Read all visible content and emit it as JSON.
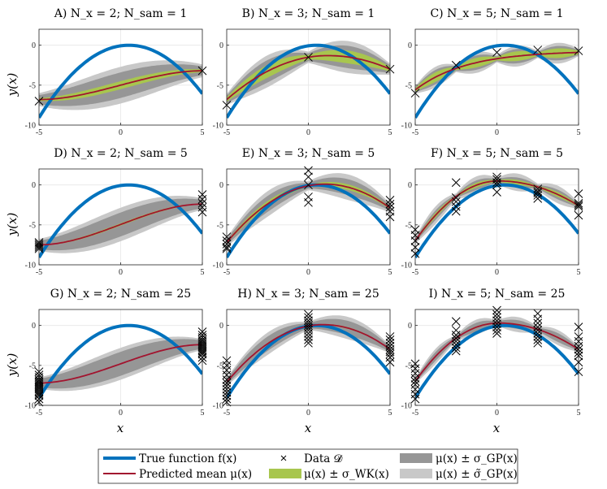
{
  "figure": {
    "ylabel": "y(x)",
    "xlabel": "x"
  },
  "legend": {
    "entries": [
      {
        "key": "true",
        "label": "True function f(x)"
      },
      {
        "key": "data",
        "label": "Data 𝓓"
      },
      {
        "key": "gp",
        "label": "μ(x) ± σ_GP(x)"
      },
      {
        "key": "mean",
        "label": "Predicted mean μ(x)"
      },
      {
        "key": "wk",
        "label": "μ(x) ± σ_WK(x)"
      },
      {
        "key": "gpt",
        "label": "μ(x) ± σ̃_GP(x)"
      }
    ]
  },
  "colors": {
    "true_function": "#0072BD",
    "predicted_mean": "#A2142F",
    "band_wk": "#A8C64E",
    "band_gp": "#969696",
    "band_gp_tilde": "#C8C8C8",
    "data_marker": "#000000"
  },
  "chart_data": [
    {
      "id": "A",
      "title": "A) N_x = 2; N_sam = 1",
      "type": "line",
      "x_range": [
        -5,
        5
      ],
      "ylim": [
        -10,
        2
      ],
      "xticks": [
        -5,
        0,
        5
      ],
      "yticks": [
        0,
        -5,
        -10
      ],
      "data_x": [
        -5,
        5
      ],
      "data_y": [
        [
          -7
        ],
        [
          -3.2
        ]
      ],
      "mean_mode": "two",
      "mean_left": -6.8,
      "mean_right": -3.2,
      "wk_width": 0.5,
      "gp_width": 1.6,
      "gpt_width": 2.3
    },
    {
      "id": "B",
      "title": "B) N_x = 3; N_sam = 1",
      "type": "line",
      "x_range": [
        -5,
        5
      ],
      "ylim": [
        -10,
        2
      ],
      "xticks": [
        -5,
        0,
        5
      ],
      "yticks": [
        0,
        -5,
        -10
      ],
      "data_x": [
        -5,
        0,
        5
      ],
      "data_y": [
        [
          -7.5
        ],
        [
          -1.5
        ],
        [
          -3
        ]
      ],
      "mean_mode": "peak",
      "mean_left": -6.8,
      "mean_peak": -1.3,
      "mean_peak_x": 1.2,
      "mean_right": -3.0,
      "wk_width": 0.8,
      "gp_width": 1.4,
      "gpt_width": 2.0
    },
    {
      "id": "C",
      "title": "C) N_x = 5; N_sam = 1",
      "type": "line",
      "x_range": [
        -5,
        5
      ],
      "ylim": [
        -10,
        2
      ],
      "xticks": [
        -5,
        0,
        5
      ],
      "yticks": [
        0,
        -5,
        -10
      ],
      "data_x": [
        -5,
        -2.5,
        0,
        2.5,
        5
      ],
      "data_y": [
        [
          -6
        ],
        [
          -2.5
        ],
        [
          -0.9
        ],
        [
          -0.6
        ],
        [
          -0.7
        ]
      ],
      "mean_mode": "sat",
      "mean_left": -5.6,
      "mean_plateau": -0.7,
      "wk_width": 0.6,
      "gp_width": 0.9,
      "gpt_width": 1.3
    },
    {
      "id": "D",
      "title": "D) N_x = 2; N_sam = 5",
      "type": "line",
      "x_range": [
        -5,
        5
      ],
      "ylim": [
        -10,
        2
      ],
      "xticks": [
        -5,
        0,
        5
      ],
      "yticks": [
        0,
        -5,
        -10
      ],
      "data_x": [
        -5,
        5
      ],
      "data_y": [
        [
          -7.2,
          -7.4,
          -7.6,
          -7.8,
          -8.0
        ],
        [
          -1.2,
          -1.8,
          -2.3,
          -2.8,
          -3.4
        ]
      ],
      "mean_mode": "two",
      "mean_left": -7.5,
      "mean_right": -2.4,
      "wk_width": 0.15,
      "gp_width": 1.5,
      "gpt_width": 2.1
    },
    {
      "id": "E",
      "title": "E) N_x = 3; N_sam = 5",
      "type": "line",
      "x_range": [
        -5,
        5
      ],
      "ylim": [
        -10,
        2
      ],
      "xticks": [
        -5,
        0,
        5
      ],
      "yticks": [
        0,
        -5,
        -10
      ],
      "data_x": [
        -5,
        0,
        5
      ],
      "data_y": [
        [
          -6.5,
          -7.0,
          -7.4,
          -7.8,
          -8.0
        ],
        [
          1.8,
          1.0,
          0.0,
          -1.5,
          -2.2
        ],
        [
          -1.9,
          -2.4,
          -2.8,
          -3.3,
          -4.0
        ]
      ],
      "mean_mode": "peak",
      "mean_left": -7.2,
      "mean_peak": 0.1,
      "mean_peak_x": 1.0,
      "mean_right": -2.9,
      "wk_width": 0.35,
      "gp_width": 1.0,
      "gpt_width": 1.6
    },
    {
      "id": "F",
      "title": "F) N_x = 5; N_sam = 5",
      "type": "line",
      "x_range": [
        -5,
        5
      ],
      "ylim": [
        -10,
        2
      ],
      "xticks": [
        -5,
        0,
        5
      ],
      "yticks": [
        0,
        -5,
        -10
      ],
      "data_x": [
        -5,
        -2.5,
        0,
        2.5,
        5
      ],
      "data_y": [
        [
          -5.6,
          -6.3,
          -7.0,
          -7.8,
          -8.6
        ],
        [
          0.3,
          -1.6,
          -2.1,
          -2.7,
          -3.3
        ],
        [
          1.0,
          0.7,
          0.3,
          0.0,
          -0.9
        ],
        [
          -0.5,
          -0.8,
          -1.0,
          -1.3,
          -1.7
        ],
        [
          -1.1,
          -2.3,
          -2.5,
          -2.7,
          -3.8
        ]
      ],
      "mean_mode": "peak",
      "mean_left": -7.0,
      "mean_peak": 0.5,
      "mean_peak_x": 0.1,
      "mean_right": -2.6,
      "wk_width": 0.3,
      "gp_width": 0.6,
      "gpt_width": 1.1
    },
    {
      "id": "G",
      "title": "G) N_x = 2; N_sam = 25",
      "type": "line",
      "x_range": [
        -5,
        5
      ],
      "ylim": [
        -10,
        2
      ],
      "xticks": [
        -5,
        0,
        5
      ],
      "yticks": [
        0,
        -5,
        -10
      ],
      "data_x": [
        -5,
        5
      ],
      "data_y": [
        [
          -5.8,
          -6.2,
          -6.5,
          -6.8,
          -7.0,
          -7.2,
          -7.4,
          -7.6,
          -7.8,
          -8.0,
          -8.2,
          -8.4,
          -8.6,
          -8.8,
          -9.2,
          -9.6
        ],
        [
          -0.8,
          -1.2,
          -1.5,
          -1.8,
          -2.0,
          -2.2,
          -2.4,
          -2.6,
          -2.8,
          -3.0,
          -3.2,
          -3.4,
          -3.6,
          -4.0,
          -4.4
        ]
      ],
      "mean_mode": "two",
      "mean_left": -7.2,
      "mean_right": -2.4,
      "wk_width": 0.05,
      "gp_width": 1.5,
      "gpt_width": 2.0
    },
    {
      "id": "H",
      "title": "H) N_x = 3; N_sam = 25",
      "type": "line",
      "x_range": [
        -5,
        5
      ],
      "ylim": [
        -10,
        2
      ],
      "xticks": [
        -5,
        0,
        5
      ],
      "yticks": [
        0,
        -5,
        -10
      ],
      "data_x": [
        -5,
        0,
        5
      ],
      "data_y": [
        [
          -4.4,
          -5.0,
          -5.6,
          -6.2,
          -6.8,
          -7.2,
          -7.6,
          -8.0,
          -8.4,
          -8.8,
          -9.2,
          -9.6
        ],
        [
          1.4,
          1.0,
          0.6,
          0.3,
          0.0,
          -0.3,
          -0.6,
          -1.0,
          -1.4,
          -1.8,
          -2.2
        ],
        [
          -1.4,
          -1.8,
          -2.2,
          -2.6,
          -3.0,
          -3.3,
          -3.6,
          -4.0,
          -4.6
        ]
      ],
      "mean_mode": "peak",
      "mean_left": -7.1,
      "mean_peak": 0.1,
      "mean_peak_x": 0.9,
      "mean_right": -3.0,
      "wk_width": 0.1,
      "gp_width": 0.9,
      "gpt_width": 1.4
    },
    {
      "id": "I",
      "title": "I) N_x = 5; N_sam = 25",
      "type": "line",
      "x_range": [
        -5,
        5
      ],
      "ylim": [
        -10,
        2
      ],
      "xticks": [
        -5,
        0,
        5
      ],
      "yticks": [
        0,
        -5,
        -10
      ],
      "data_x": [
        -5,
        -2.5,
        0,
        2.5,
        5
      ],
      "data_y": [
        [
          -4.8,
          -5.4,
          -6.0,
          -6.6,
          -7.0,
          -7.4,
          -8.0,
          -8.6,
          -9.2
        ],
        [
          0.5,
          -0.6,
          -1.2,
          -1.6,
          -2.0,
          -2.4,
          -2.8,
          -3.2
        ],
        [
          1.9,
          1.4,
          1.0,
          0.6,
          0.2,
          -0.2,
          -0.6,
          -1.0
        ],
        [
          1.5,
          0.8,
          0.3,
          -0.2,
          -0.6,
          -1.0,
          -1.4,
          -1.8,
          -2.2
        ],
        [
          -0.2,
          -1.4,
          -2.0,
          -2.6,
          -3.0,
          -3.4,
          -3.8,
          -4.6,
          -5.8
        ]
      ],
      "mean_mode": "peak",
      "mean_left": -7.0,
      "mean_peak": 0.3,
      "mean_peak_x": 0.1,
      "mean_right": -3.0,
      "wk_width": 0.1,
      "gp_width": 0.55,
      "gpt_width": 0.95
    }
  ]
}
